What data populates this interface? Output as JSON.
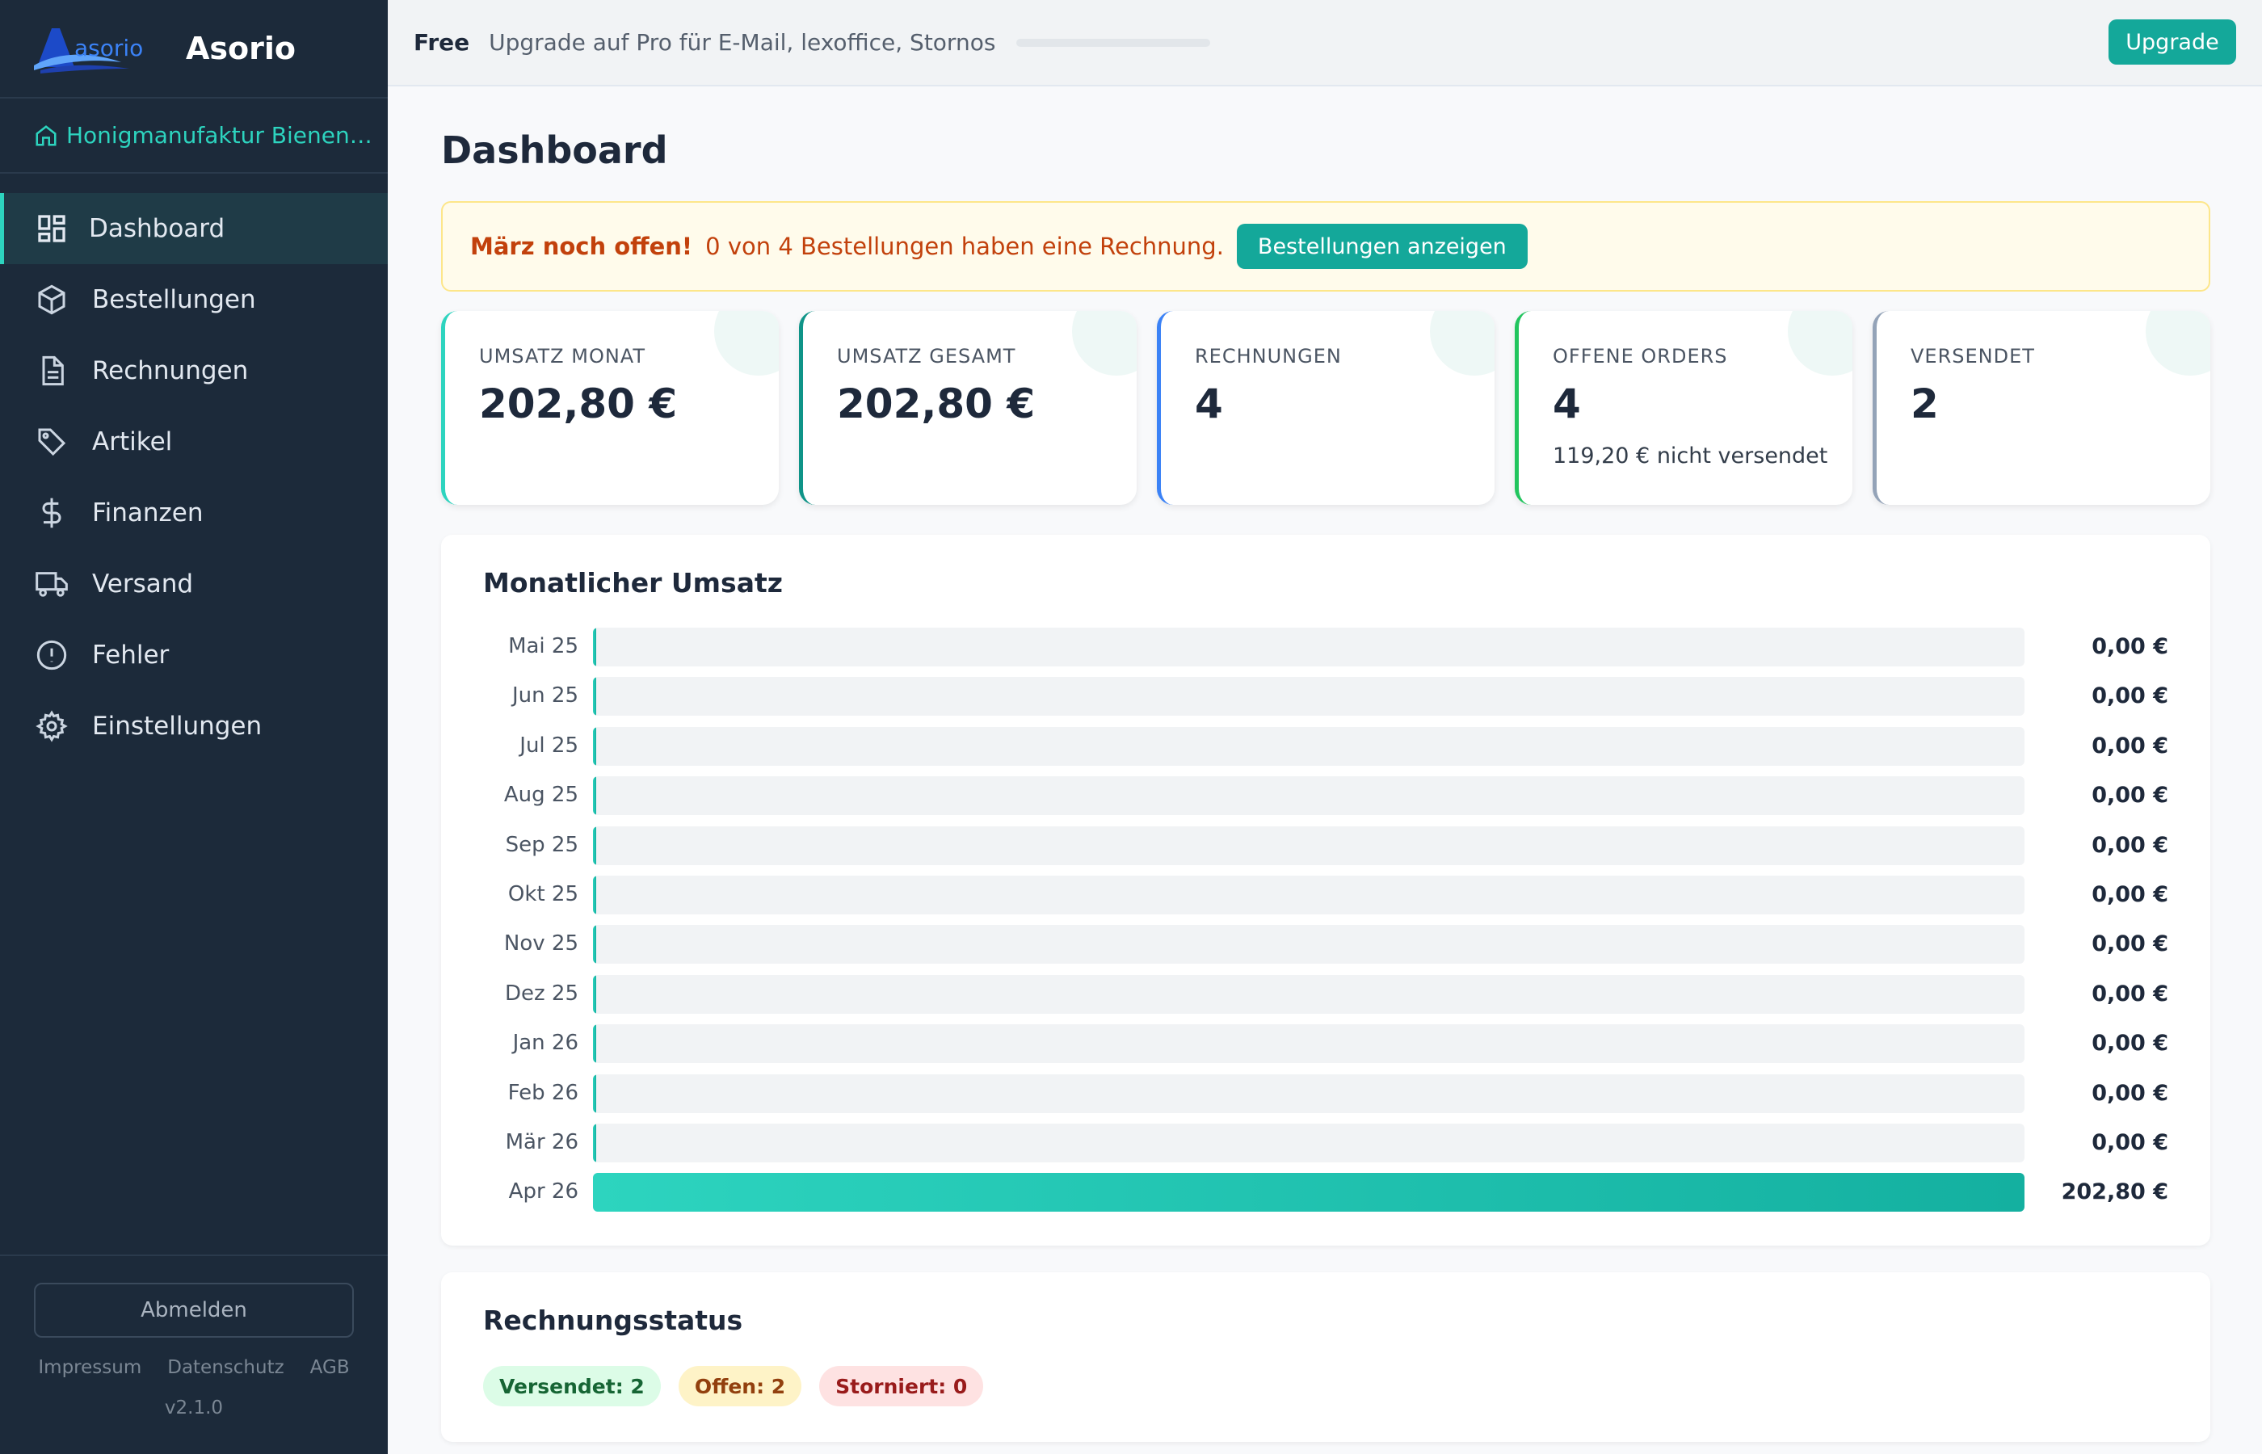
{
  "app": {
    "name": "Asorio",
    "logo_text": "asorio"
  },
  "company": {
    "name": "Honigmanufaktur Bienenglück"
  },
  "nav": [
    {
      "label": "Dashboard",
      "icon": "grid-icon",
      "active": true
    },
    {
      "label": "Bestellungen",
      "icon": "package-icon"
    },
    {
      "label": "Rechnungen",
      "icon": "document-icon"
    },
    {
      "label": "Artikel",
      "icon": "tag-icon"
    },
    {
      "label": "Finanzen",
      "icon": "dollar-icon"
    },
    {
      "label": "Versand",
      "icon": "truck-icon"
    },
    {
      "label": "Fehler",
      "icon": "alert-circle-icon"
    },
    {
      "label": "Einstellungen",
      "icon": "gear-icon"
    }
  ],
  "sidebar_footer": {
    "logout": "Abmelden",
    "links": [
      "Impressum",
      "Datenschutz",
      "AGB"
    ],
    "version": "v2.1.0"
  },
  "topbar": {
    "plan": "Free",
    "upgrade_text": "Upgrade auf Pro für E-Mail, lexoffice, Stornos",
    "upgrade_button": "Upgrade"
  },
  "page": {
    "title": "Dashboard"
  },
  "alert": {
    "strong": "März noch offen!",
    "text": "0 von 4 Bestellungen haben eine Rechnung.",
    "button": "Bestellungen anzeigen"
  },
  "cards": [
    {
      "label": "UMSATZ MONAT",
      "value": "202,80 €",
      "sub": "",
      "accent": "#2dd4bf"
    },
    {
      "label": "UMSATZ GESAMT",
      "value": "202,80 €",
      "sub": "",
      "accent": "#0f9488"
    },
    {
      "label": "RECHNUNGEN",
      "value": "4",
      "sub": "",
      "accent": "#3b82f6"
    },
    {
      "label": "OFFENE ORDERS",
      "value": "4",
      "sub": "119,20 € nicht versendet",
      "accent": "#22c55e"
    },
    {
      "label": "VERSENDET",
      "value": "2",
      "sub": "",
      "accent": "#94a3b8"
    }
  ],
  "revenue_panel": {
    "title": "Monatlicher Umsatz"
  },
  "chart_data": {
    "type": "bar",
    "orientation": "horizontal",
    "categories": [
      "Mai 25",
      "Jun 25",
      "Jul 25",
      "Aug 25",
      "Sep 25",
      "Okt 25",
      "Nov 25",
      "Dez 25",
      "Jan 26",
      "Feb 26",
      "Mär 26",
      "Apr 26"
    ],
    "values": [
      0,
      0,
      0,
      0,
      0,
      0,
      0,
      0,
      0,
      0,
      0,
      202.8
    ],
    "value_labels": [
      "0,00 €",
      "0,00 €",
      "0,00 €",
      "0,00 €",
      "0,00 €",
      "0,00 €",
      "0,00 €",
      "0,00 €",
      "0,00 €",
      "0,00 €",
      "0,00 €",
      "202,80 €"
    ],
    "xlim": [
      0,
      202.8
    ]
  },
  "status_panel": {
    "title": "Rechnungsstatus",
    "badges": [
      {
        "label": "Versendet: 2",
        "kind": "ok"
      },
      {
        "label": "Offen: 2",
        "kind": "open"
      },
      {
        "label": "Storniert: 0",
        "kind": "cancel"
      }
    ]
  }
}
